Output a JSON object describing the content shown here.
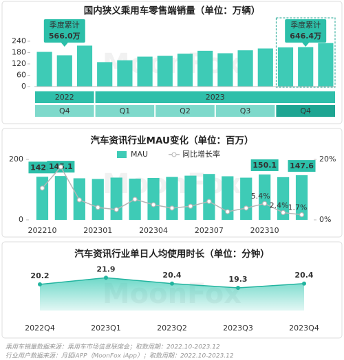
{
  "watermark": "MoonFox",
  "chart_data": [
    {
      "type": "bar",
      "title": "国内狭义乘用车零售端销量（单位：万辆）",
      "color": "#3ecbb6",
      "ylim": [
        0,
        240
      ],
      "yticks": [
        0,
        60,
        120,
        180,
        240
      ],
      "groups": [
        {
          "label": "2022",
          "quarters": [
            {
              "label": "Q4",
              "values": [
                183.6,
                165.6,
                216.7
              ],
              "callout": [
                "季度累计",
                "566.0万"
              ]
            }
          ]
        },
        {
          "label": "2023",
          "quarters": [
            {
              "label": "Q1",
              "values": [
                129.4,
                139.1,
                158.3
              ]
            },
            {
              "label": "Q2",
              "values": [
                163.1,
                174.2,
                189.5
              ]
            },
            {
              "label": "Q3",
              "values": [
                176.4,
                192.0,
                201.7
              ]
            },
            {
              "label": "Q4",
              "values": [
                207.2,
                208.9,
                230.3
              ],
              "callout": [
                "季度累计",
                "646.4万"
              ],
              "highlight": true
            }
          ]
        }
      ]
    },
    {
      "type": "bar_line",
      "title": "汽车资讯行业MAU变化（单位：百万）",
      "categories": [
        "202210",
        null,
        null,
        "202301",
        null,
        null,
        "202304",
        null,
        null,
        "202307",
        null,
        null,
        "202310",
        null,
        null
      ],
      "series": [
        {
          "name": "MAU",
          "color": "#3ecbb6",
          "values": [
            142.5,
            145.1,
            137.5,
            135.2,
            139.8,
            136.4,
            138.6,
            141.9,
            146.3,
            151.8,
            144.2,
            139.6,
            150.1,
            141.3,
            147.6
          ],
          "value_labels": [
            "142.5",
            "145.1",
            null,
            null,
            null,
            null,
            null,
            null,
            null,
            null,
            null,
            null,
            "150.1",
            null,
            "147.6"
          ]
        },
        {
          "name": "同比增长率",
          "color": "#b5b5b5",
          "axis": "y2",
          "values": [
            10.5,
            17.5,
            6.6,
            4.1,
            3.4,
            6.8,
            5.0,
            3.9,
            4.5,
            6.1,
            2.7,
            3.9,
            5.4,
            2.4,
            1.7
          ],
          "value_labels": [
            null,
            null,
            null,
            null,
            null,
            null,
            null,
            null,
            null,
            null,
            null,
            null,
            "5.4%",
            "2.4%",
            "1.7%"
          ]
        }
      ],
      "ylim": [
        0,
        200
      ],
      "yticks": [
        0,
        200
      ],
      "y2lim": [
        0,
        20
      ],
      "y2ticks": [
        {
          "value": 0,
          "label": "0%"
        },
        {
          "value": 20,
          "label": "20%"
        }
      ]
    },
    {
      "type": "area",
      "title": "汽车资讯行业单日人均使用时长（单位：分钟）",
      "categories": [
        "2022Q4",
        "2023Q1",
        "2023Q2",
        "2023Q3",
        "2023Q4"
      ],
      "values": [
        20.2,
        21.9,
        20.4,
        19.3,
        20.4
      ],
      "color": "#3ecbb6",
      "ylim": [
        13.5,
        23
      ]
    }
  ],
  "footer": [
    "乘用车销量数据来源：乘用车市场信息联席会；取数周期：2022.10-2023.12",
    "行业用户数据来源：月狐iAPP（MoonFox iApp）；取数周期：2022.10-2023.12"
  ]
}
